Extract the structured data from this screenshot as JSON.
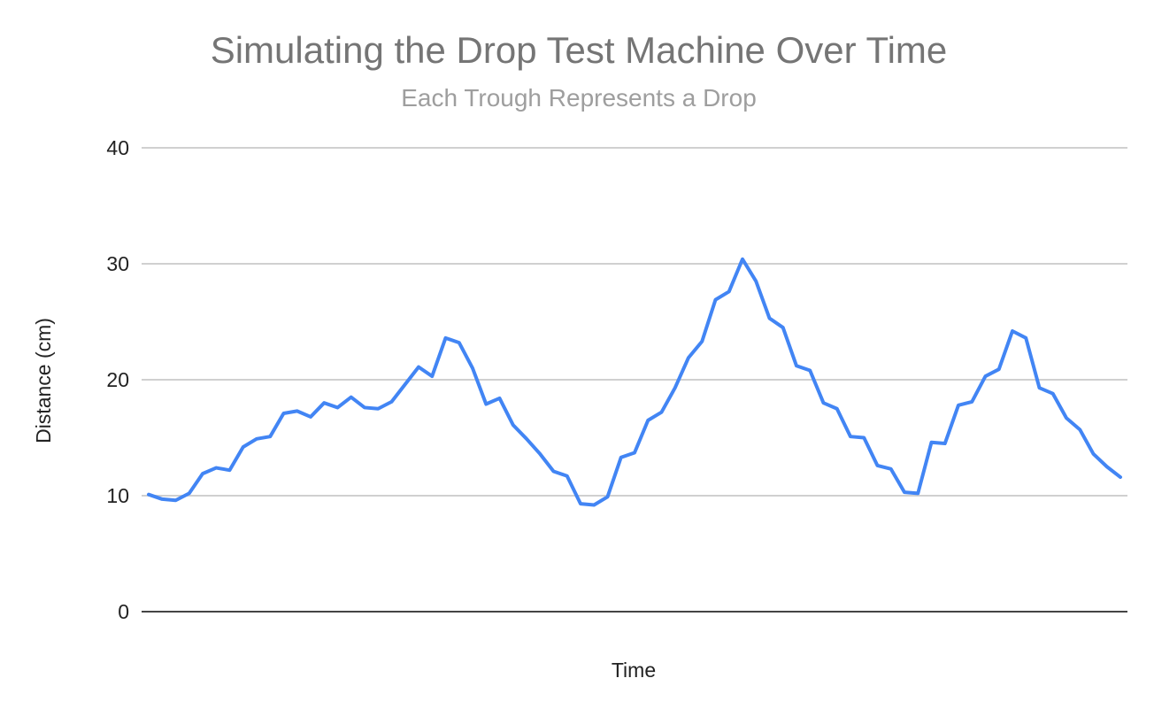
{
  "chart_data": {
    "type": "line",
    "title": "Simulating the Drop Test Machine Over Time",
    "subtitle": "Each Trough Represents a Drop",
    "xlabel": "Time",
    "ylabel": "Distance (cm)",
    "ylim": [
      0,
      40
    ],
    "yticks": [
      "0",
      "10",
      "20",
      "30",
      "40"
    ],
    "grid": true,
    "legend": "none",
    "series": [
      {
        "color": "#4285f4",
        "values": [
          10.1,
          9.7,
          9.6,
          10.2,
          11.9,
          12.4,
          12.2,
          14.2,
          14.9,
          15.1,
          17.1,
          17.3,
          16.8,
          18.0,
          17.6,
          18.5,
          17.6,
          17.5,
          18.1,
          19.6,
          21.1,
          20.3,
          23.6,
          23.2,
          21.0,
          17.9,
          18.4,
          16.1,
          14.9,
          13.6,
          12.1,
          11.7,
          9.3,
          9.2,
          9.9,
          13.3,
          13.7,
          16.5,
          17.2,
          19.3,
          21.9,
          23.3,
          26.9,
          27.6,
          30.4,
          28.5,
          25.3,
          24.5,
          21.2,
          20.8,
          18.0,
          17.5,
          15.1,
          15.0,
          12.6,
          12.3,
          10.3,
          10.2,
          14.6,
          14.5,
          17.8,
          18.1,
          20.3,
          20.9,
          24.2,
          23.6,
          19.3,
          18.8,
          16.7,
          15.7,
          13.6,
          12.5,
          11.6
        ]
      }
    ]
  }
}
